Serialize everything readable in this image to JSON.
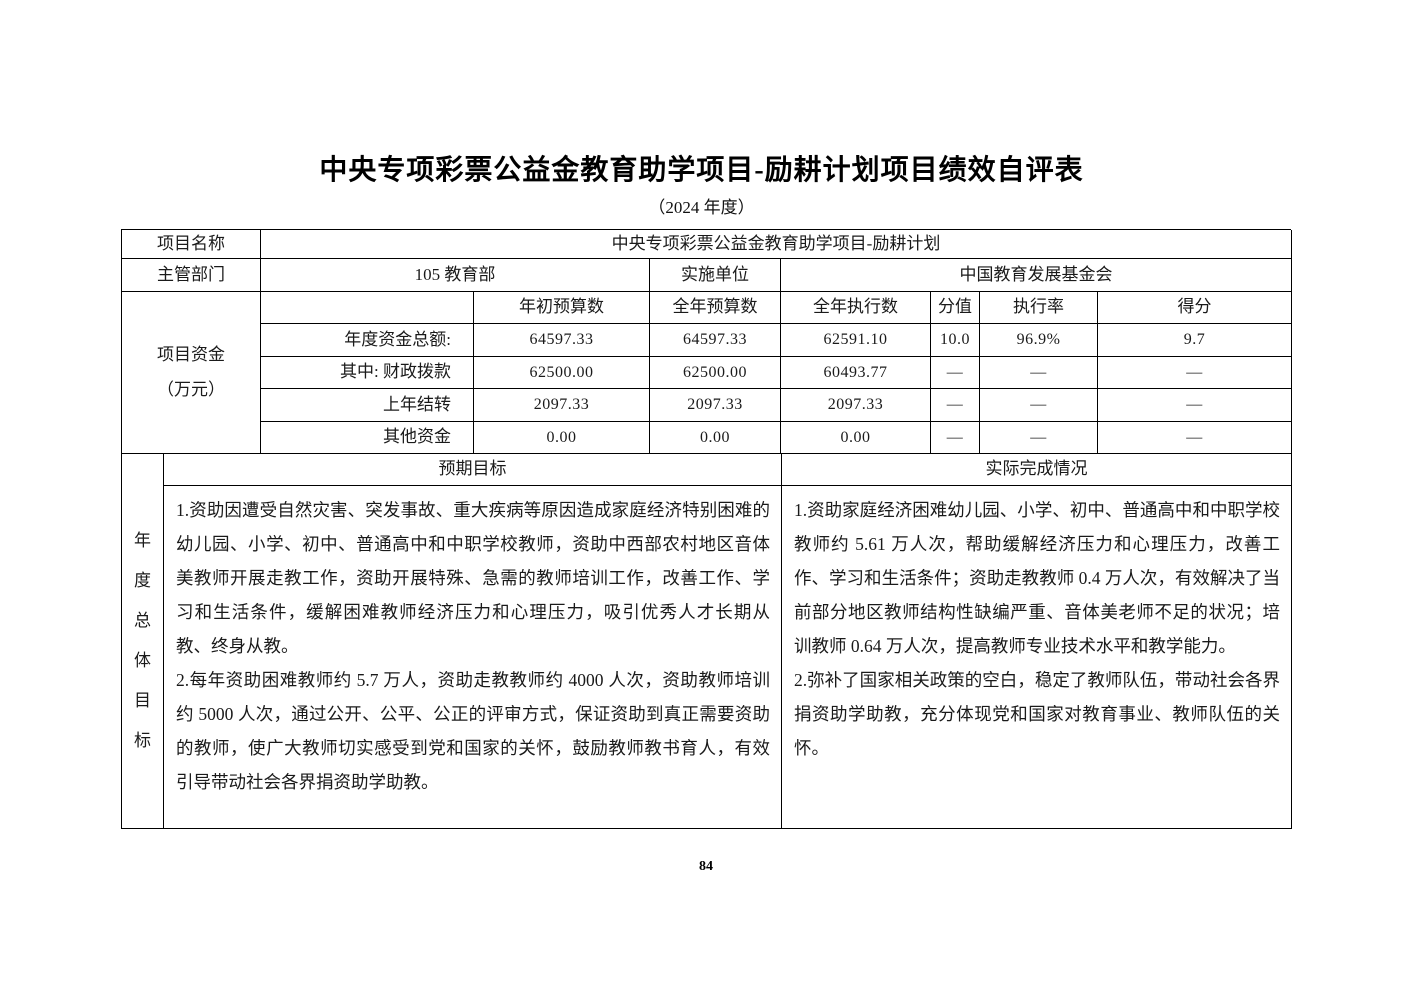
{
  "page": {
    "title": "中央专项彩票公益金教育助学项目-励耕计划项目绩效自评表",
    "subtitle": "（2024 年度）",
    "page_number": "84"
  },
  "info": {
    "project_name_label": "项目名称",
    "project_name_value": "中央专项彩票公益金教育助学项目-励耕计划",
    "dept_label": "主管部门",
    "dept_value": "105 教育部",
    "impl_label": "实施单位",
    "impl_value": "中国教育发展基金会"
  },
  "funding": {
    "group_label_line1": "项目资金",
    "group_label_line2": "（万元）",
    "headers": [
      "年初预算数",
      "全年预算数",
      "全年执行数",
      "分值",
      "执行率",
      "得分"
    ],
    "rows": [
      {
        "label": "年度资金总额:",
        "cells": [
          "64597.33",
          "64597.33",
          "62591.10",
          "10.0",
          "96.9%",
          "9.7"
        ]
      },
      {
        "label": "其中: 财政拨款",
        "cells": [
          "62500.00",
          "62500.00",
          "60493.77",
          "—",
          "—",
          "—"
        ]
      },
      {
        "label": "上年结转",
        "cells": [
          "2097.33",
          "2097.33",
          "2097.33",
          "—",
          "—",
          "—"
        ]
      },
      {
        "label": "其他资金",
        "cells": [
          "0.00",
          "0.00",
          "0.00",
          "—",
          "—",
          "—"
        ]
      }
    ]
  },
  "annual_goals": {
    "side_label": "年度总体目标",
    "expected_header": "预期目标",
    "actual_header": "实际完成情况",
    "expected_items": [
      "1.资助因遭受自然灾害、突发事故、重大疾病等原因造成家庭经济特别困难的幼儿园、小学、初中、普通高中和中职学校教师，资助中西部农村地区音体美教师开展走教工作，资助开展特殊、急需的教师培训工作，改善工作、学习和生活条件，缓解困难教师经济压力和心理压力，吸引优秀人才长期从教、终身从教。",
      "2.每年资助困难教师约 5.7 万人，资助走教教师约 4000 人次，资助教师培训约 5000 人次，通过公开、公平、公正的评审方式，保证资助到真正需要资助的教师，使广大教师切实感受到党和国家的关怀，鼓励教师教书育人，有效引导带动社会各界捐资助学助教。"
    ],
    "actual_items": [
      "1.资助家庭经济困难幼儿园、小学、初中、普通高中和中职学校教师约 5.61 万人次，帮助缓解经济压力和心理压力，改善工作、学习和生活条件；资助走教教师 0.4 万人次，有效解决了当前部分地区教师结构性缺编严重、音体美老师不足的状况；培训教师 0.64 万人次，提高教师专业技术水平和教学能力。",
      "2.弥补了国家相关政策的空白，稳定了教师队伍，带动社会各界捐资助学助教，充分体现党和国家对教育事业、教师队伍的关怀。"
    ]
  }
}
